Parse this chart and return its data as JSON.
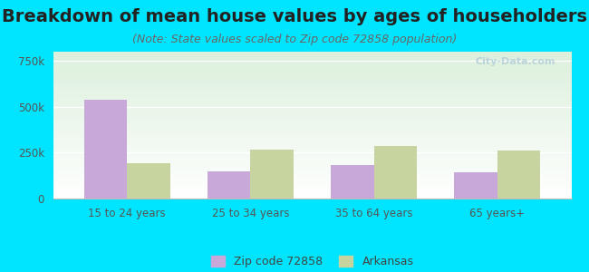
{
  "title": "Breakdown of mean house values by ages of householders",
  "subtitle": "(Note: State values scaled to Zip code 72858 population)",
  "categories": [
    "15 to 24 years",
    "25 to 34 years",
    "35 to 64 years",
    "65 years+"
  ],
  "zip_values": [
    540000,
    150000,
    185000,
    145000
  ],
  "state_values": [
    195000,
    265000,
    285000,
    260000
  ],
  "zip_color": "#c8a8d8",
  "state_color": "#c8d4a0",
  "background_outer": "#00e5ff",
  "ylim": [
    0,
    800000
  ],
  "yticks": [
    0,
    250000,
    500000,
    750000
  ],
  "ytick_labels": [
    "0",
    "250k",
    "500k",
    "750k"
  ],
  "legend_zip_label": "Zip code 72858",
  "legend_state_label": "Arkansas",
  "title_fontsize": 14,
  "subtitle_fontsize": 9,
  "bar_width": 0.35,
  "watermark": "City-Data.com"
}
